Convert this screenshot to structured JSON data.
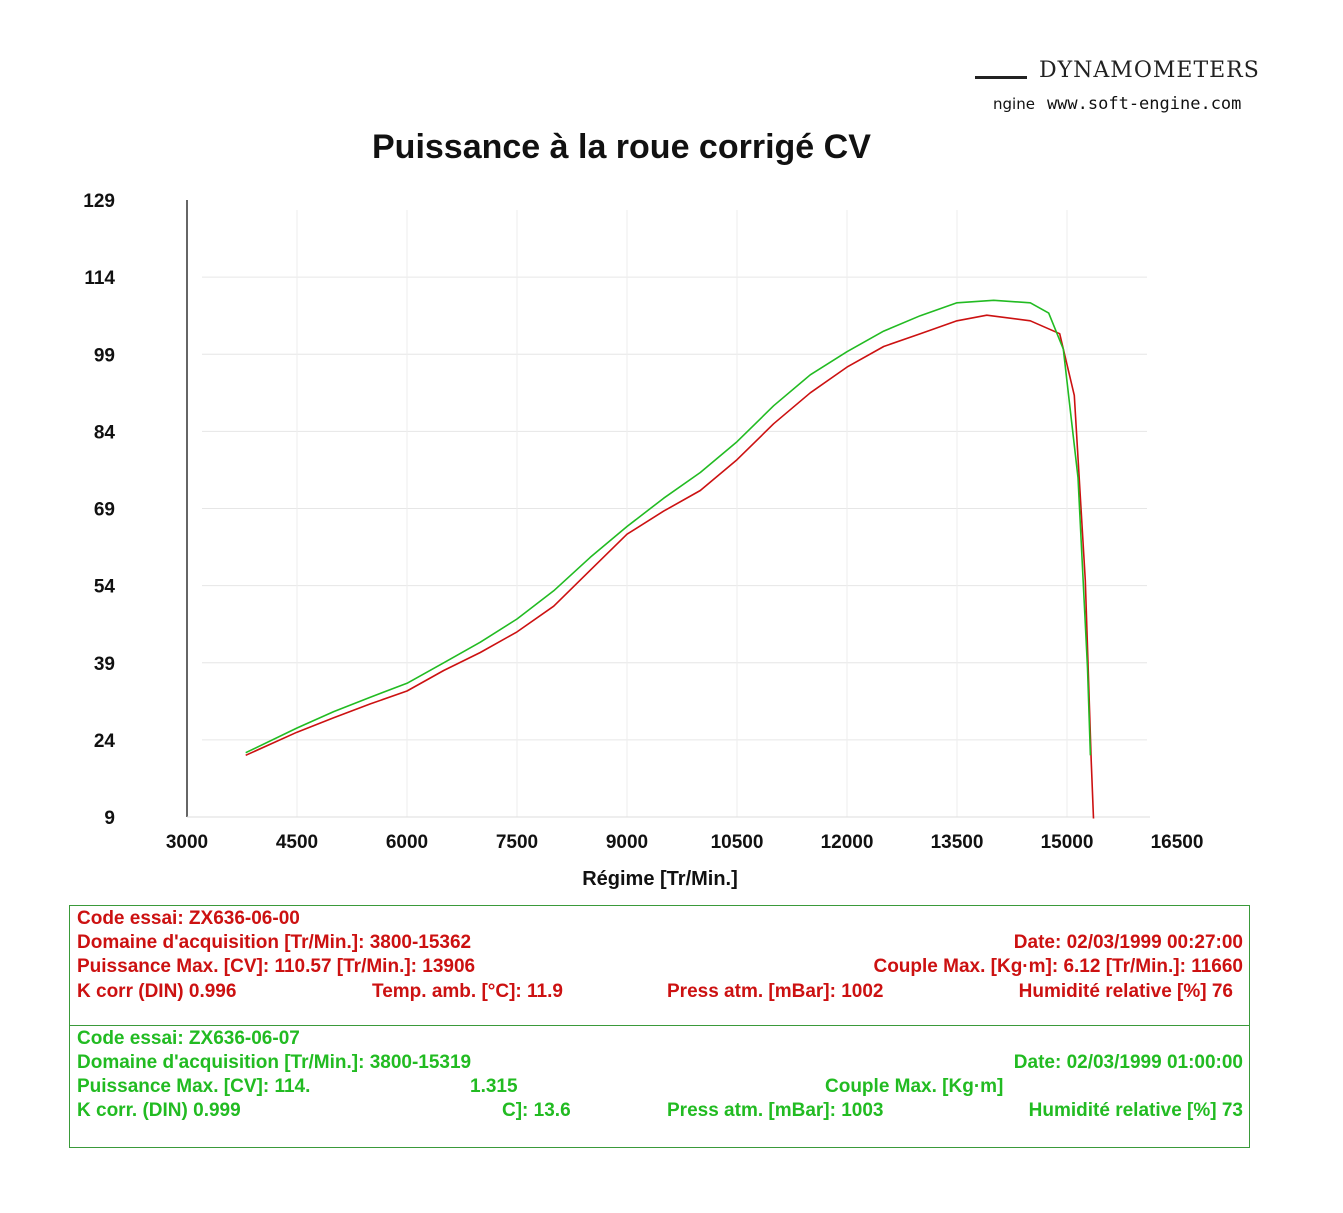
{
  "brand": {
    "name": "DYNAMOMETERS",
    "fragment": "ngine",
    "url": "www.soft-engine.com"
  },
  "chart_data": {
    "type": "line",
    "title": "Puissance à la roue corrigé  CV",
    "xlabel": "Régime [Tr/Min.]",
    "ylabel": "",
    "xlim": [
      3000,
      16500
    ],
    "ylim": [
      9,
      129
    ],
    "xticks": [
      "3000",
      "4500",
      "6000",
      "7500",
      "9000",
      "10500",
      "12000",
      "13500",
      "15000",
      "16500"
    ],
    "yticks": [
      "129",
      "114",
      "99",
      "84",
      "69",
      "54",
      "39",
      "24",
      "9"
    ],
    "grid": true,
    "series": [
      {
        "name": "ZX636-06-00",
        "color": "#cc1111",
        "points": [
          [
            3800,
            21
          ],
          [
            4500,
            25.5
          ],
          [
            5000,
            28.3
          ],
          [
            5500,
            31
          ],
          [
            6000,
            33.5
          ],
          [
            6500,
            37.5
          ],
          [
            7000,
            41
          ],
          [
            7500,
            45
          ],
          [
            8000,
            50
          ],
          [
            8500,
            57
          ],
          [
            9000,
            64
          ],
          [
            9500,
            68.5
          ],
          [
            10000,
            72.5
          ],
          [
            10500,
            78.5
          ],
          [
            11000,
            85.5
          ],
          [
            11500,
            91.5
          ],
          [
            12000,
            96.5
          ],
          [
            12500,
            100.5
          ],
          [
            13000,
            103
          ],
          [
            13500,
            105.5
          ],
          [
            13906,
            106.6
          ],
          [
            14500,
            105.5
          ],
          [
            14900,
            103
          ],
          [
            15100,
            91
          ],
          [
            15250,
            55
          ],
          [
            15330,
            20
          ],
          [
            15362,
            8.7
          ]
        ]
      },
      {
        "name": "ZX636-06-07",
        "color": "#22bb22",
        "points": [
          [
            3800,
            21.5
          ],
          [
            4500,
            26.3
          ],
          [
            5000,
            29.5
          ],
          [
            5500,
            32.3
          ],
          [
            6000,
            35
          ],
          [
            6500,
            39
          ],
          [
            7000,
            43
          ],
          [
            7500,
            47.5
          ],
          [
            8000,
            53
          ],
          [
            8500,
            59.5
          ],
          [
            9000,
            65.5
          ],
          [
            9500,
            71
          ],
          [
            10000,
            76
          ],
          [
            10500,
            82
          ],
          [
            11000,
            89
          ],
          [
            11500,
            95
          ],
          [
            12000,
            99.5
          ],
          [
            12500,
            103.5
          ],
          [
            13000,
            106.5
          ],
          [
            13500,
            109
          ],
          [
            14000,
            109.5
          ],
          [
            14500,
            109
          ],
          [
            14750,
            107
          ],
          [
            14950,
            100
          ],
          [
            15150,
            75
          ],
          [
            15280,
            38
          ],
          [
            15319,
            21
          ]
        ]
      }
    ]
  },
  "info": {
    "red": {
      "code": "Code essai: ZX636-06-00",
      "domaine": "Domaine d'acquisition [Tr/Min.]: 3800-15362",
      "date": "Date: 02/03/1999   00:27:00",
      "puissance": "Puissance Max. [CV]: 110.57   [Tr/Min.]: 13906",
      "couple": "Couple Max. [Kg·m]: 6.12   [Tr/Min.]: 11660",
      "kcorr": "K corr  (DIN)   0.996",
      "temp": "Temp. amb. [°C]: 11.9",
      "press": "Press atm. [mBar]: 1002",
      "humid": "Humidité relative [%]  76"
    },
    "green": {
      "code": "Code essai: ZX636-06-07",
      "domaine": "Domaine d'acquisition [Tr/Min.]: 3800-15319",
      "date": "Date: 02/03/1999   01:00:00",
      "puissance": "Puissance Max. [CV]: 114.",
      "puissance_rpm": "1.315",
      "couple": "Couple Max. [Kg·m]",
      "kcorr": "K corr. (DIN)   0.999",
      "temp": "C]: 13.6",
      "press": "Press atm. [mBar]: 1003",
      "humid": "Humidité relative [%]  73"
    }
  }
}
